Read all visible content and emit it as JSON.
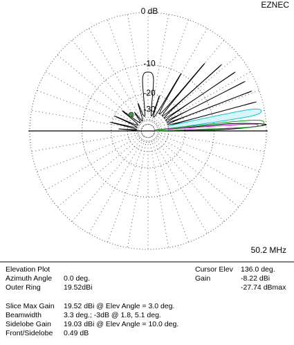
{
  "chart_data": {
    "type": "polar-elevation",
    "brand": "EZNEC",
    "frequency": "50.2 MHz",
    "scale": "arrl-log",
    "rticks": [
      {
        "value": 0,
        "label": "0 dB"
      },
      -10,
      -20,
      -30,
      {
        "value": -40,
        "label": null
      },
      {
        "value": -50,
        "label": null
      }
    ],
    "angle_grid_step": 10,
    "series": [
      {
        "color": "#000000",
        "x": [
          0,
          1,
          3,
          5,
          7,
          10,
          12.5,
          15,
          18,
          21,
          24,
          27,
          30.5,
          34,
          38,
          42,
          46,
          50,
          55,
          60,
          66,
          72,
          78,
          84,
          90,
          96,
          102,
          110,
          118,
          126,
          134,
          142,
          150,
          156,
          162,
          167,
          172,
          176,
          180
        ],
        "values": [
          -50,
          -8,
          0,
          -6,
          -30,
          -0.49,
          -30,
          -0.9,
          -30,
          -1.1,
          -30,
          -1.4,
          -30,
          -2,
          -30,
          -3,
          -30,
          -5,
          -30,
          -10,
          -35,
          -20,
          -35,
          -14,
          -12,
          -14,
          -35,
          -24,
          -40,
          -28,
          -40,
          -22,
          -40,
          -20,
          -40,
          -19,
          -40,
          -24,
          -50
        ]
      },
      {
        "color": "#00c8d8",
        "fill": "#d8f6fa",
        "x": [
          6,
          8,
          10,
          12,
          14
        ],
        "values": [
          -30,
          -3,
          -0.49,
          -3,
          -30
        ]
      },
      {
        "color": "#e000e0",
        "x": [
          0,
          2,
          3,
          4,
          6
        ],
        "values": [
          -50,
          -4,
          -1.2,
          -4,
          -50
        ]
      },
      {
        "color": "#00a000",
        "x": [
          0,
          2,
          4,
          6,
          8
        ],
        "values": [
          -50,
          -3,
          -0.3,
          -3,
          -50
        ]
      }
    ],
    "cursor": {
      "angle": 136.0,
      "value": -27.74,
      "color": "#3a9a3a"
    }
  },
  "info": {
    "left": [
      {
        "label": "Elevation Plot"
      },
      {
        "label": "Azimuth Angle",
        "value": "0.0 deg."
      },
      {
        "label": "Outer Ring",
        "value": "19.52dBi"
      },
      {
        "label": "Slice Max Gain",
        "value": "19.52 dBi @ Elev Angle = 3.0 deg."
      },
      {
        "label": "Beamwidth",
        "value": "3.3 deg.; -3dB @ 1.8, 5.1 deg."
      },
      {
        "label": "Sidelobe Gain",
        "value": "19.03 dBi @ Elev Angle = 10.0 deg."
      },
      {
        "label": "Front/Sidelobe",
        "value": "0.49 dB"
      }
    ],
    "right": [
      {
        "label": "Cursor Elev",
        "value": "136.0 deg."
      },
      {
        "label": "Gain",
        "value": "-8.22 dBi"
      },
      {
        "value": "-27.74 dBmax"
      }
    ]
  }
}
